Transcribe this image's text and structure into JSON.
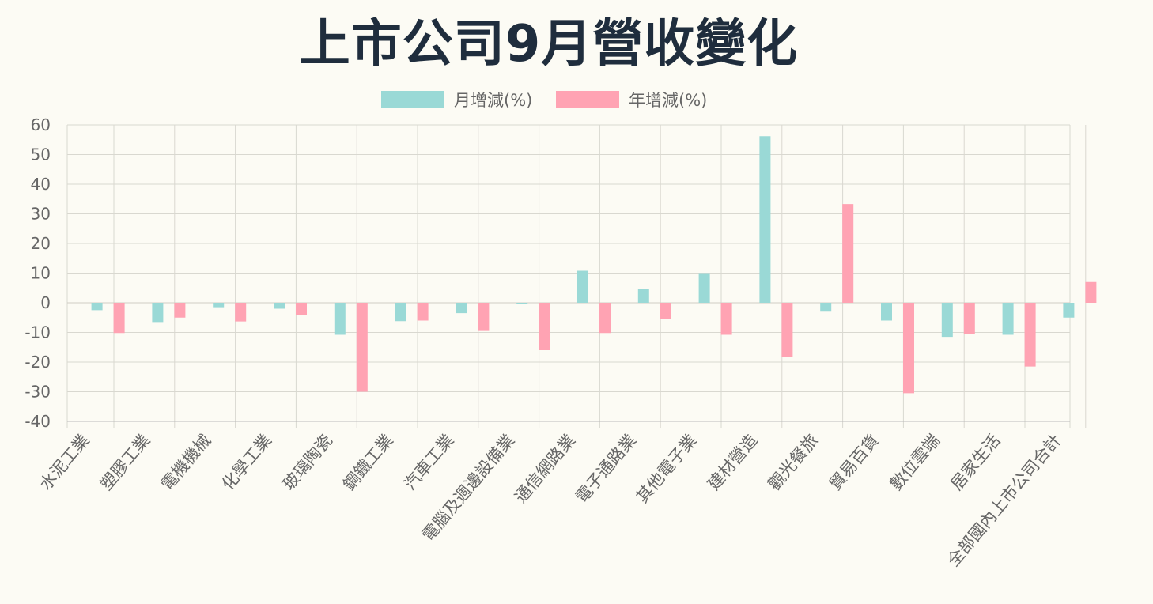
{
  "title": "上市公司9月營收變化",
  "chart_data": {
    "type": "bar",
    "categories": [
      "水泥工業",
      "塑膠工業",
      "電機機械",
      "化學工業",
      "玻璃陶瓷",
      "鋼鐵工業",
      "汽車工業",
      "電腦及週邊設備業",
      "通信網路業",
      "電子通路業",
      "其他電子業",
      "建材營造",
      "觀光餐旅",
      "貿易百貨",
      "數位雲端",
      "居家生活",
      "全部國內上市公司合計"
    ],
    "series": [
      {
        "name": "月增減(%)",
        "color": "#9ad9d6",
        "values": [
          -2.5,
          -6.5,
          -1.5,
          -2,
          -10.8,
          -6.2,
          -3.5,
          -0.3,
          10.8,
          4.8,
          10,
          56.2,
          -3,
          -6,
          -11.5,
          -10.8,
          -5
        ]
      },
      {
        "name": "年增減(%)",
        "color": "#ffa3b3",
        "values": [
          -10.2,
          -5,
          -6.3,
          -4,
          -30,
          -6,
          -9.5,
          -16,
          -10.2,
          -5.5,
          -10.8,
          -18.2,
          33.3,
          -30.5,
          -10.5,
          -21.5,
          7
        ]
      }
    ],
    "legend": "top",
    "ylim": [
      -40,
      60
    ],
    "yticks": [
      60,
      50,
      40,
      30,
      20,
      10,
      0,
      -10,
      -20,
      -30,
      -40
    ],
    "grid": true
  }
}
